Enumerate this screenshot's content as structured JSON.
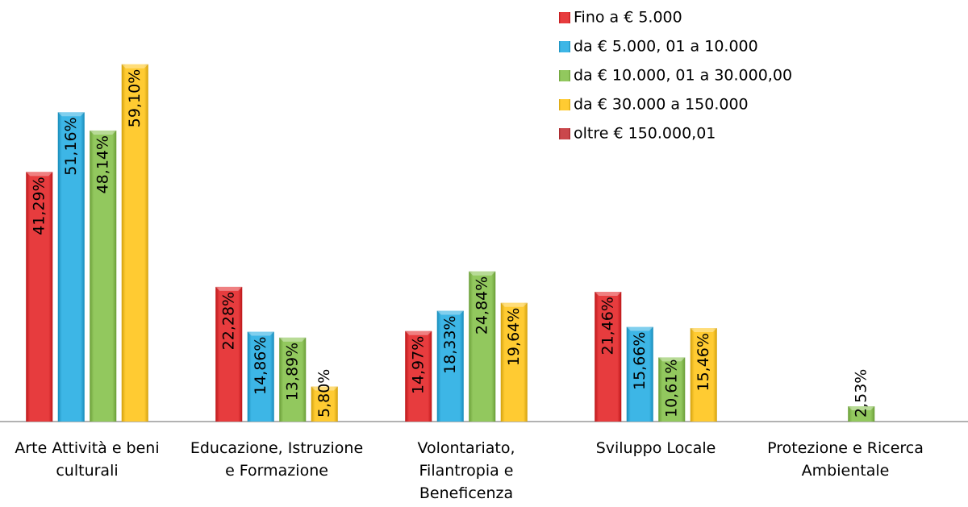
{
  "chart_data": {
    "type": "bar",
    "categories": [
      "Arte Attività e beni culturali",
      "Educazione, Istruzione e Formazione",
      "Volontariato, Filantropia e Beneficenza",
      "Sviluppo Locale",
      "Protezione e Ricerca Ambientale"
    ],
    "series": [
      {
        "name": "Fino a € 5.000",
        "color": "#e3191c",
        "values": [
          41.29,
          22.28,
          14.97,
          21.46,
          null
        ],
        "value_labels": [
          "41,29%",
          "22,28%",
          "14,97%",
          "21,46%",
          null
        ]
      },
      {
        "name": "da € 5.000, 01 a 10.000",
        "color": "#1ba9e1",
        "values": [
          51.16,
          14.86,
          18.33,
          15.66,
          null
        ],
        "value_labels": [
          "51,16%",
          "14,86%",
          "18,33%",
          "15,66%",
          null
        ]
      },
      {
        "name": "da € 10.000, 01 a 30.000,00",
        "color": "#7fbe41",
        "values": [
          48.14,
          13.89,
          24.84,
          10.61,
          2.53
        ],
        "value_labels": [
          "48,14%",
          "13,89%",
          "24,84%",
          "10,61%",
          "2,53%"
        ]
      },
      {
        "name": "da € 30.000 a 150.000",
        "color": "#ffc20e",
        "values": [
          59.1,
          5.8,
          19.64,
          15.46,
          null
        ],
        "value_labels": [
          "59,10%",
          "5,80%",
          "19,64%",
          "15,46%",
          null
        ]
      },
      {
        "name": "oltre € 150.000,01",
        "color": "#c1272d",
        "values": [
          null,
          null,
          null,
          null,
          null
        ]
      }
    ],
    "ylim": [
      0,
      60
    ],
    "legend": "top-right"
  }
}
